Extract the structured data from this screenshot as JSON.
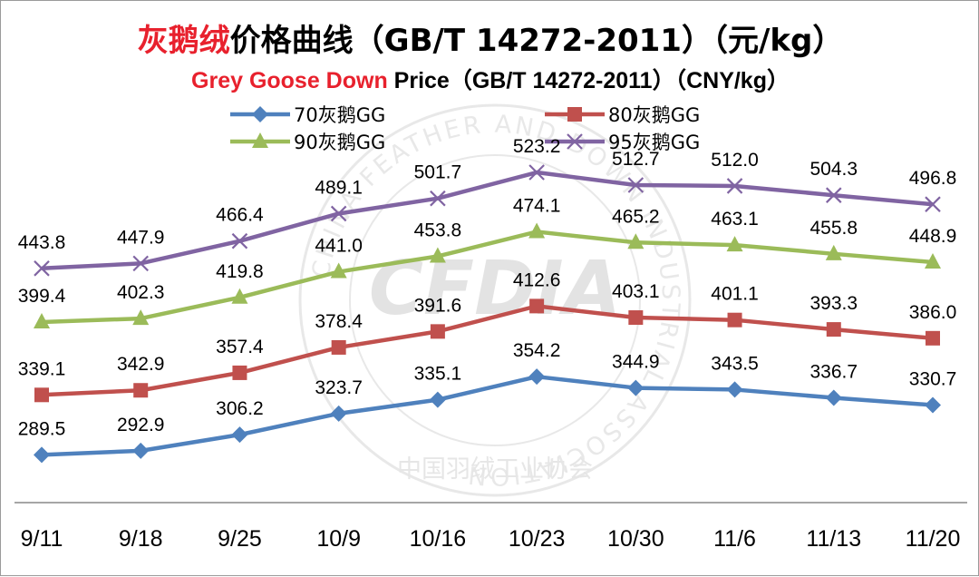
{
  "chart_data": {
    "type": "line",
    "title_highlight": "灰鹅绒",
    "title_rest": "价格曲线（GB/T 14272-2011）（元/kg）",
    "subtitle_highlight": "Grey Goose Down",
    "subtitle_rest": " Price（GB/T 14272-2011）（CNY/kg）",
    "categories": [
      "9/11",
      "9/18",
      "9/25",
      "10/9",
      "10/16",
      "10/23",
      "10/30",
      "11/6",
      "11/13",
      "11/20"
    ],
    "ylim": [
      250,
      560
    ],
    "grid": false,
    "legend_position": "top",
    "series": [
      {
        "name": "70灰鹅GG",
        "color": "#4f81bd",
        "marker": "diamond",
        "values": [
          289.5,
          292.9,
          306.2,
          323.7,
          335.1,
          354.2,
          344.9,
          343.5,
          336.7,
          330.7
        ],
        "labels": [
          "289.5",
          "292.9",
          "306.2",
          "323.7",
          "335.1",
          "354.2",
          "344.9",
          "343.5",
          "336.7",
          "330.7"
        ]
      },
      {
        "name": "80灰鹅GG",
        "color": "#c0504d",
        "marker": "square",
        "values": [
          339.1,
          342.9,
          357.4,
          378.4,
          391.6,
          412.6,
          403.1,
          401.1,
          393.3,
          386.0
        ],
        "labels": [
          "339.1",
          "342.9",
          "357.4",
          "378.4",
          "391.6",
          "412.6",
          "403.1",
          "401.1",
          "393.3",
          "386.0"
        ]
      },
      {
        "name": "90灰鹅GG",
        "color": "#9bbb59",
        "marker": "triangle",
        "values": [
          399.4,
          402.3,
          419.8,
          441.0,
          453.8,
          474.1,
          465.2,
          463.1,
          455.8,
          448.9
        ],
        "labels": [
          "399.4",
          "402.3",
          "419.8",
          "441.0",
          "453.8",
          "474.1",
          "465.2",
          "463.1",
          "455.8",
          "448.9"
        ]
      },
      {
        "name": "95灰鹅GG",
        "color": "#8064a2",
        "marker": "x",
        "values": [
          443.8,
          447.9,
          466.4,
          489.1,
          501.7,
          523.2,
          512.7,
          512.0,
          504.3,
          496.8
        ],
        "labels": [
          "443.8",
          "447.9",
          "466.4",
          "489.1",
          "501.7",
          "523.2",
          "512.7",
          "512.0",
          "504.3",
          "496.8"
        ]
      }
    ]
  },
  "watermark": {
    "logo_text": "CFDIA",
    "ring_en": "CHINA FEATHER AND DOWN INDUSTRIAL ASSOCIATION",
    "ring_cn": "中国羽绒工业协会"
  },
  "colors": {
    "title_highlight": "#e8212d",
    "title_rest": "#000000",
    "axis": "#888888"
  }
}
